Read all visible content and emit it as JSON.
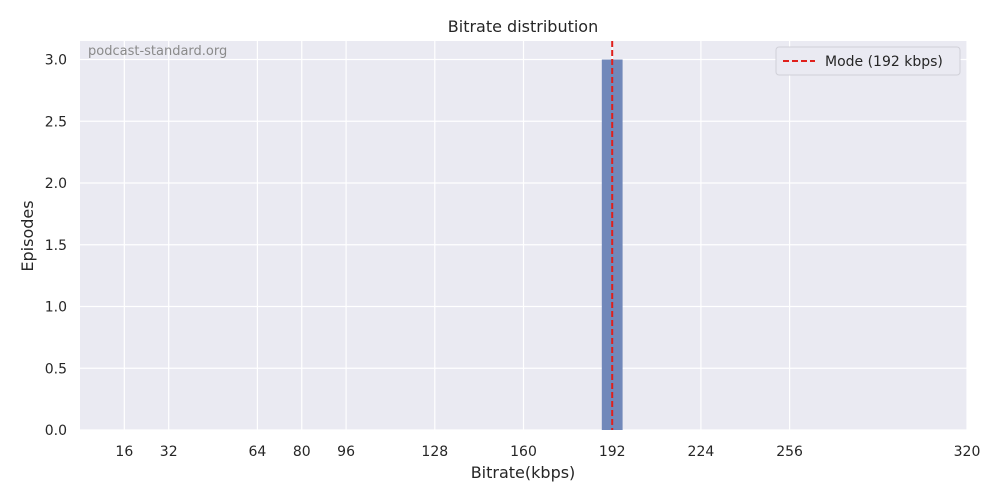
{
  "chart_data": {
    "type": "bar",
    "title": "Bitrate distribution",
    "xlabel": "Bitrate(kbps)",
    "ylabel": "Episodes",
    "watermark": "podcast-standard.org",
    "xlim": [
      0,
      320
    ],
    "ylim": [
      0,
      3.15
    ],
    "xticks": [
      16,
      32,
      64,
      80,
      96,
      128,
      160,
      192,
      224,
      256,
      320
    ],
    "yticks": [
      0.0,
      0.5,
      1.0,
      1.5,
      2.0,
      2.5,
      3.0
    ],
    "xtick_labels": [
      "16",
      "32",
      "64",
      "80",
      "96",
      "128",
      "160",
      "192",
      "224",
      "256",
      "320"
    ],
    "ytick_labels": [
      "0.0",
      "0.5",
      "1.0",
      "1.5",
      "2.0",
      "2.5",
      "3.0"
    ],
    "bars": [
      {
        "x": 192,
        "width": 7.5,
        "value": 3
      }
    ],
    "mode_line": {
      "x": 192,
      "label": "Mode (192 kbps)",
      "color": "#e0201c"
    },
    "legend": {
      "placement": "top-right",
      "entries": [
        "Mode (192 kbps)"
      ]
    },
    "grid": true,
    "colors": {
      "background": "#eaeaf2",
      "grid": "#ffffff",
      "bar": "#7188ba"
    }
  }
}
